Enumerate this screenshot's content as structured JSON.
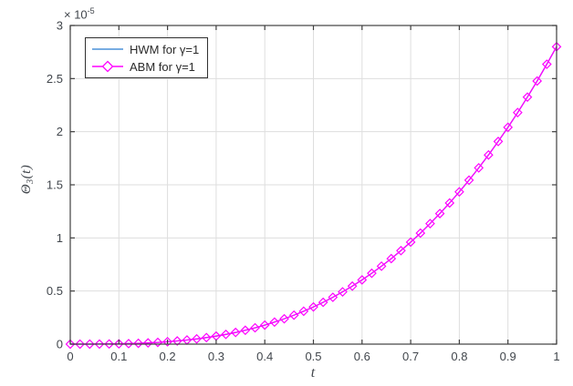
{
  "figure": {
    "background": "#FFFFFF",
    "axes_color": "#3F3F3F",
    "grid_color": "#DEDEDE",
    "tick_label_color": "#41464C",
    "offset_text": "× 10",
    "offset_exponent": "-5",
    "xlabel": "t",
    "ylabel": {
      "main": "Θ",
      "sub": "3",
      "rest": "(t)"
    }
  },
  "chart_data": {
    "type": "line",
    "title": "",
    "xlabel": "t",
    "ylabel": "Theta_3(t)",
    "y_scale": "1e-5",
    "grid": true,
    "legend_position": "top-left",
    "xlim": [
      0,
      1
    ],
    "ylim_e5": [
      0,
      3
    ],
    "x_ticks": [
      0,
      0.1,
      0.2,
      0.3,
      0.4,
      0.5,
      0.6,
      0.7,
      0.8,
      0.9,
      1
    ],
    "x_tick_labels": [
      "0",
      "0.1",
      "0.2",
      "0.3",
      "0.4",
      "0.5",
      "0.6",
      "0.7",
      "0.8",
      "0.9",
      "1"
    ],
    "y_ticks_e5": [
      0,
      0.5,
      1,
      1.5,
      2,
      2.5,
      3
    ],
    "y_tick_labels": [
      "0",
      "0.5",
      "1",
      "1.5",
      "2",
      "2.5",
      "3"
    ],
    "x": [
      0,
      0.02,
      0.04,
      0.06,
      0.08,
      0.1,
      0.12,
      0.14,
      0.16,
      0.18,
      0.2,
      0.22,
      0.24,
      0.26,
      0.28,
      0.3,
      0.32,
      0.34,
      0.36,
      0.38,
      0.4,
      0.42,
      0.44,
      0.46,
      0.48,
      0.5,
      0.52,
      0.54,
      0.56,
      0.58,
      0.6,
      0.62,
      0.64,
      0.66,
      0.68,
      0.7,
      0.72,
      0.74,
      0.76,
      0.78,
      0.8,
      0.82,
      0.84,
      0.86,
      0.88,
      0.9,
      0.92,
      0.94,
      0.96,
      0.98,
      1
    ],
    "series": [
      {
        "name": "HWM for γ=1",
        "color": "#4A90D9",
        "marker": "none",
        "values_e5": [
          0,
          0.0,
          0.0002,
          0.0006,
          0.0014,
          0.0028,
          0.0048,
          0.0077,
          0.0115,
          0.0163,
          0.0224,
          0.0298,
          0.0387,
          0.0492,
          0.0615,
          0.0756,
          0.0917,
          0.1101,
          0.1306,
          0.1536,
          0.1792,
          0.2074,
          0.2385,
          0.2725,
          0.3097,
          0.35,
          0.3937,
          0.4409,
          0.4917,
          0.5463,
          0.6048,
          0.6673,
          0.734,
          0.805,
          0.8804,
          0.9604,
          1.0451,
          1.1346,
          1.2291,
          1.3287,
          1.4336,
          1.5438,
          1.6596,
          1.781,
          1.9081,
          2.0412,
          2.1803,
          2.3256,
          2.4773,
          2.6353,
          2.8
        ]
      },
      {
        "name": "ABM for γ=1",
        "color": "#FF00FF",
        "marker": "diamond",
        "values_e5": [
          0,
          0.0,
          0.0002,
          0.0006,
          0.0014,
          0.0028,
          0.0048,
          0.0077,
          0.0115,
          0.0163,
          0.0224,
          0.0298,
          0.0387,
          0.0492,
          0.0615,
          0.0756,
          0.0917,
          0.1101,
          0.1306,
          0.1536,
          0.1792,
          0.2074,
          0.2385,
          0.2725,
          0.3097,
          0.35,
          0.3937,
          0.4409,
          0.4917,
          0.5463,
          0.6048,
          0.6673,
          0.734,
          0.805,
          0.8804,
          0.9604,
          1.0451,
          1.1346,
          1.2291,
          1.3287,
          1.4336,
          1.5438,
          1.6596,
          1.781,
          1.9081,
          2.0412,
          2.1803,
          2.3256,
          2.4773,
          2.6353,
          2.8
        ]
      }
    ]
  }
}
